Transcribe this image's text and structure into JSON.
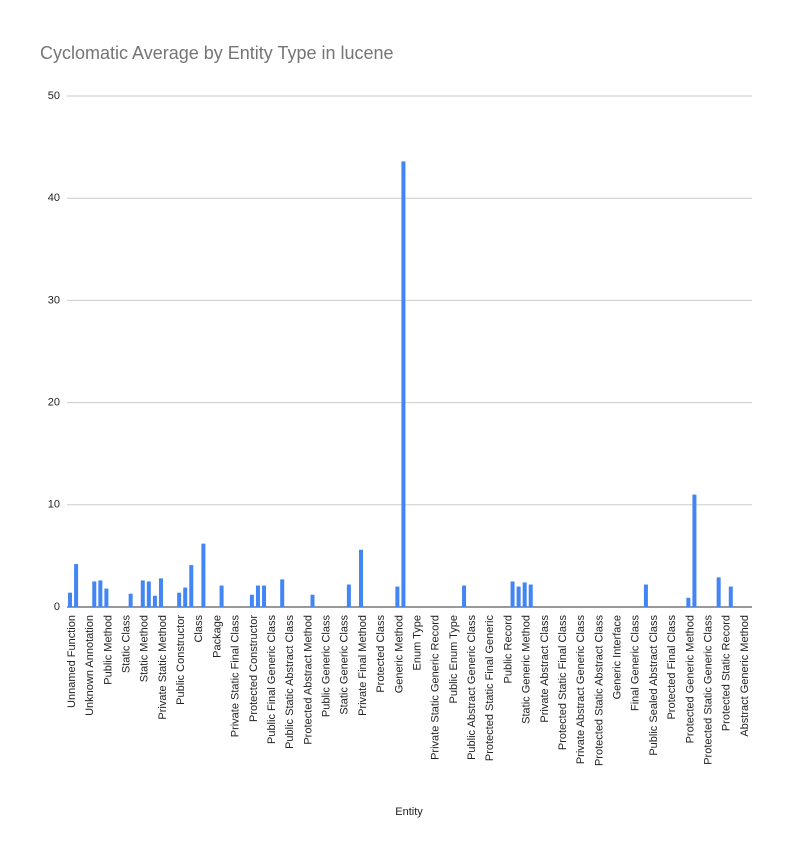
{
  "chart_data": {
    "type": "bar",
    "title": "Cyclomatic Average by Entity Type in lucene",
    "x_label": "Entity",
    "categories": [
      "Unnamed Function",
      null,
      null,
      "Unknown Annotation",
      null,
      null,
      "Public Method",
      null,
      null,
      "Static Class",
      null,
      null,
      "Static Method",
      null,
      null,
      "Private Static Method",
      null,
      null,
      "Public Constructor",
      null,
      null,
      "Class",
      null,
      null,
      "Package",
      null,
      null,
      "Private Static Final Class",
      null,
      null,
      "Protected Constructor",
      null,
      null,
      "Public Final Generic Class",
      null,
      null,
      "Public Static Abstract Class",
      null,
      null,
      "Protected Abstract Method",
      null,
      null,
      "Public Generic Class",
      null,
      null,
      "Static Generic Class",
      null,
      null,
      "Private Final Method",
      null,
      null,
      "Protected Class",
      null,
      null,
      "Generic Method",
      null,
      null,
      "Enum Type",
      null,
      null,
      "Private Static Generic Record",
      null,
      null,
      "Public Enum Type",
      null,
      null,
      "Public Abstract Generic Class",
      null,
      null,
      "Protected Static Final Generic",
      null,
      null,
      "Public Record",
      null,
      null,
      "Static Generic Method",
      null,
      null,
      "Private Abstract Class",
      null,
      null,
      "Protected Static Final Class",
      null,
      null,
      "Private Abstract Generic Class",
      null,
      null,
      "Protected Static Abstract Class",
      null,
      null,
      "Generic Interface",
      null,
      null,
      "Final Generic Class",
      null,
      null,
      "Public Sealed Abstract Class",
      null,
      null,
      "Protected Final Class",
      null,
      null,
      "Protected Generic Method",
      null,
      null,
      "Protected Static Generic Class",
      null,
      null,
      "Protected Static Record",
      null,
      null,
      "Abstract Generic Method",
      null
    ],
    "values": [
      1.4,
      4.2,
      0,
      0,
      2.5,
      2.6,
      1.8,
      0,
      0,
      0,
      1.3,
      0,
      2.6,
      2.5,
      1.1,
      2.8,
      0,
      0,
      1.4,
      1.9,
      4.1,
      0,
      6.2,
      0,
      0,
      2.1,
      0,
      0,
      0,
      0,
      1.2,
      2.1,
      2.1,
      0,
      0,
      2.7,
      0,
      0,
      0,
      0,
      1.2,
      0,
      0,
      0,
      0,
      0,
      2.2,
      0,
      5.6,
      0,
      0,
      0,
      0,
      0,
      2.0,
      43.6,
      0,
      0,
      0,
      0,
      0,
      0,
      0,
      0,
      0,
      2.1,
      0,
      0,
      0,
      0,
      0,
      0,
      0,
      2.5,
      2.0,
      2.4,
      2.2,
      0,
      0,
      0,
      0,
      0,
      0,
      0,
      0,
      0,
      0,
      0,
      0,
      0,
      0,
      0,
      0,
      0,
      0,
      2.2,
      0,
      0,
      0,
      0,
      0,
      0,
      0.9,
      11.0,
      0,
      0,
      0,
      2.9,
      0,
      2.0,
      0,
      0,
      0
    ],
    "color": "#4285f4",
    "ylim": [
      0,
      50
    ],
    "yticks": [
      0,
      10,
      20,
      30,
      40,
      50
    ],
    "grid": true
  }
}
